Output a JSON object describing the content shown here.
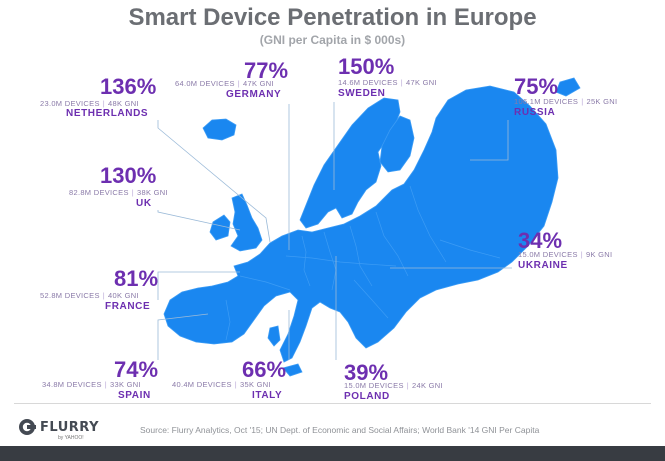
{
  "title": "Smart Device Penetration in Europe",
  "subtitle": "(GNI per Capita in $ 000s)",
  "colors": {
    "map": "#1a87f0",
    "accent": "#6d2fb0",
    "leader": "#9bbad8"
  },
  "countries": [
    {
      "id": "netherlands",
      "pct": "136%",
      "devices": "23.0M DEVICES",
      "gni": "48K GNI",
      "name": "NETHERLANDS"
    },
    {
      "id": "germany",
      "pct": "77%",
      "devices": "64.0M DEVICES",
      "gni": "47K GNI",
      "name": "GERMANY"
    },
    {
      "id": "sweden",
      "pct": "150%",
      "devices": "14.6M DEVICES",
      "gni": "47K GNI",
      "name": "SWEDEN"
    },
    {
      "id": "russia",
      "pct": "75%",
      "devices": "106.1M DEVICES",
      "gni": "25K GNI",
      "name": "RUSSIA"
    },
    {
      "id": "uk",
      "pct": "130%",
      "devices": "82.8M DEVICES",
      "gni": "38K GNI",
      "name": "UK"
    },
    {
      "id": "ukraine",
      "pct": "34%",
      "devices": "15.0M DEVICES",
      "gni": "9K GNI",
      "name": "UKRAINE"
    },
    {
      "id": "france",
      "pct": "81%",
      "devices": "52.8M DEVICES",
      "gni": "40K GNI",
      "name": "FRANCE"
    },
    {
      "id": "spain",
      "pct": "74%",
      "devices": "34.8M DEVICES",
      "gni": "33K GNI",
      "name": "SPAIN"
    },
    {
      "id": "italy",
      "pct": "66%",
      "devices": "40.4M DEVICES",
      "gni": "35K GNI",
      "name": "ITALY"
    },
    {
      "id": "poland",
      "pct": "39%",
      "devices": "15.0M DEVICES",
      "gni": "24K GNI",
      "name": "POLAND"
    }
  ],
  "footer": {
    "logo": "FLURRY",
    "logo_sub": "by YAHOO!",
    "source": "Source: Flurry Analytics, Oct '15; UN Dept. of Economic and Social Affairs; World Bank '14 GNI Per Capita"
  }
}
